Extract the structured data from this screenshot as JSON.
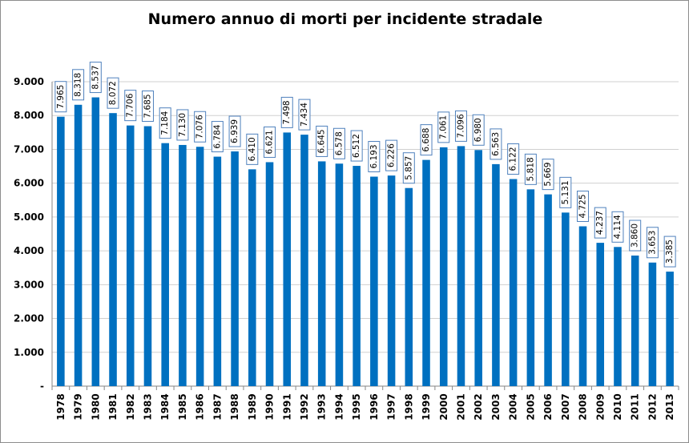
{
  "chart_data": {
    "type": "bar",
    "title": "Numero annuo di morti per incidente stradale",
    "xlabel": "",
    "ylabel": "",
    "ylim": [
      0,
      9000
    ],
    "y_ticks": [
      0,
      1000,
      2000,
      3000,
      4000,
      5000,
      6000,
      7000,
      8000,
      9000
    ],
    "y_tick_labels": [
      "-",
      "1.000",
      "2.000",
      "3.000",
      "4.000",
      "5.000",
      "6.000",
      "7.000",
      "8.000",
      "9.000"
    ],
    "grid": true,
    "bar_color": "#0070C0",
    "categories": [
      "1978",
      "1979",
      "1980",
      "1981",
      "1982",
      "1983",
      "1984",
      "1985",
      "1986",
      "1987",
      "1988",
      "1989",
      "1990",
      "1991",
      "1992",
      "1993",
      "1994",
      "1995",
      "1996",
      "1997",
      "1998",
      "1999",
      "2000",
      "2001",
      "2002",
      "2003",
      "2004",
      "2005",
      "2006",
      "2007",
      "2008",
      "2009",
      "2010",
      "2011",
      "2012",
      "2013"
    ],
    "values": [
      7965,
      8318,
      8537,
      8072,
      7706,
      7685,
      7184,
      7130,
      7076,
      6784,
      6939,
      6410,
      6621,
      7498,
      7434,
      6645,
      6578,
      6512,
      6193,
      6226,
      5857,
      6688,
      7061,
      7096,
      6980,
      6563,
      6122,
      5818,
      5669,
      5131,
      4725,
      4237,
      4114,
      3860,
      3653,
      3385
    ],
    "data_labels": [
      "7.965",
      "8.318",
      "8.537",
      "8.072",
      "7.706",
      "7.685",
      "7.184",
      "7.130",
      "7.076",
      "6.784",
      "6.939",
      "6.410",
      "6.621",
      "7.498",
      "7.434",
      "6.645",
      "6.578",
      "6.512",
      "6.193",
      "6.226",
      "5.857",
      "6.688",
      "7.061",
      "7.096",
      "6.980",
      "6.563",
      "6.122",
      "5.818",
      "5.669",
      "5.131",
      "4.725",
      "4.237",
      "4.114",
      "3.860",
      "3.653",
      "3.385"
    ]
  }
}
